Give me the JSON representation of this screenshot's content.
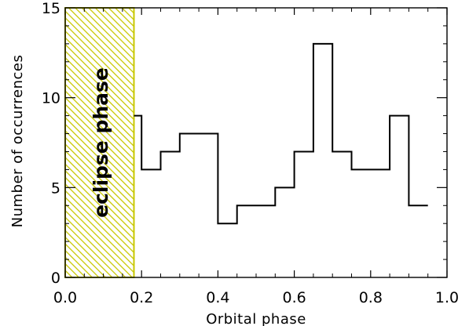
{
  "chart_data": {
    "type": "histogram",
    "xlabel": "Orbital phase",
    "ylabel": "Number of occurrences",
    "xlim": [
      0.0,
      1.0
    ],
    "ylim": [
      0,
      15
    ],
    "xticks": [
      "0.0",
      "0.2",
      "0.4",
      "0.6",
      "0.8",
      "1.0"
    ],
    "yticks": [
      "0",
      "5",
      "10",
      "15"
    ],
    "bin_width": 0.05,
    "bins": [
      {
        "x0": 0.15,
        "x1": 0.2,
        "value": 9
      },
      {
        "x0": 0.2,
        "x1": 0.25,
        "value": 6
      },
      {
        "x0": 0.25,
        "x1": 0.3,
        "value": 7
      },
      {
        "x0": 0.3,
        "x1": 0.35,
        "value": 8
      },
      {
        "x0": 0.35,
        "x1": 0.4,
        "value": 8
      },
      {
        "x0": 0.4,
        "x1": 0.45,
        "value": 3
      },
      {
        "x0": 0.45,
        "x1": 0.5,
        "value": 4
      },
      {
        "x0": 0.5,
        "x1": 0.55,
        "value": 4
      },
      {
        "x0": 0.55,
        "x1": 0.6,
        "value": 5
      },
      {
        "x0": 0.6,
        "x1": 0.65,
        "value": 7
      },
      {
        "x0": 0.65,
        "x1": 0.7,
        "value": 13
      },
      {
        "x0": 0.7,
        "x1": 0.75,
        "value": 7
      },
      {
        "x0": 0.75,
        "x1": 0.8,
        "value": 6
      },
      {
        "x0": 0.8,
        "x1": 0.85,
        "value": 6
      },
      {
        "x0": 0.85,
        "x1": 0.9,
        "value": 9
      },
      {
        "x0": 0.9,
        "x1": 0.95,
        "value": 4
      }
    ],
    "shaded_region": {
      "label": "eclipse phase",
      "x0": 0.0,
      "x1": 0.18,
      "color": "#c8c800",
      "pattern": "diagonal-hatch"
    },
    "line_color": "#000000",
    "grid": false,
    "legend": "none"
  }
}
